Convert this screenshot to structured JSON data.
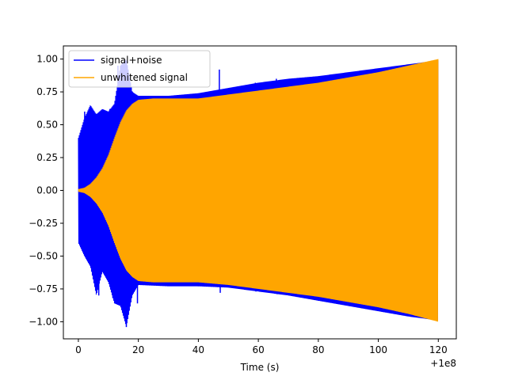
{
  "chart_data": {
    "type": "line",
    "title": "",
    "xlabel": "Time (s)",
    "ylabel": "",
    "x_offset_label": "+1e8",
    "xlim": [
      -5,
      126
    ],
    "ylim": [
      -1.13,
      1.1
    ],
    "x_ticks": [
      0,
      20,
      40,
      60,
      80,
      100,
      120
    ],
    "x_tick_labels": [
      "0",
      "20",
      "40",
      "60",
      "80",
      "100",
      "120"
    ],
    "y_ticks": [
      -1.0,
      -0.75,
      -0.5,
      -0.25,
      0.0,
      0.25,
      0.5,
      0.75,
      1.0
    ],
    "y_tick_labels": [
      "−1.00",
      "−0.75",
      "−0.50",
      "−0.25",
      "0.00",
      "0.25",
      "0.50",
      "0.75",
      "1.00"
    ],
    "grid": false,
    "legend": {
      "position": "top-left"
    },
    "series": [
      {
        "name": "signal+noise",
        "color": "#0000ff",
        "envelope": {
          "x": [
            0,
            2,
            4,
            6,
            8,
            10,
            12,
            14,
            16,
            18,
            20,
            30,
            40,
            50,
            60,
            70,
            80,
            90,
            100,
            110,
            120
          ],
          "upper": [
            0.4,
            0.55,
            0.65,
            0.58,
            0.62,
            0.6,
            0.66,
            0.95,
            1.0,
            0.75,
            0.72,
            0.72,
            0.74,
            0.78,
            0.82,
            0.85,
            0.87,
            0.9,
            0.93,
            0.96,
            0.99
          ],
          "lower": [
            -0.4,
            -0.5,
            -0.58,
            -0.8,
            -0.62,
            -0.7,
            -0.86,
            -0.88,
            -1.04,
            -0.8,
            -0.72,
            -0.73,
            -0.73,
            -0.74,
            -0.77,
            -0.8,
            -0.84,
            -0.88,
            -0.92,
            -0.96,
            -0.99
          ]
        },
        "spikes": [
          {
            "x": 1.0,
            "y": 0.4
          },
          {
            "x": 1.5,
            "y": -0.42
          },
          {
            "x": 2.1,
            "y": 0.6
          },
          {
            "x": 3.0,
            "y": -0.48
          },
          {
            "x": 4.5,
            "y": 0.62
          },
          {
            "x": 5.2,
            "y": -0.52
          },
          {
            "x": 6.8,
            "y": -0.8
          },
          {
            "x": 7.5,
            "y": 0.58
          },
          {
            "x": 9.0,
            "y": -0.6
          },
          {
            "x": 10.5,
            "y": 0.62
          },
          {
            "x": 11.5,
            "y": -0.82
          },
          {
            "x": 12.5,
            "y": 0.66
          },
          {
            "x": 13.2,
            "y": 0.95
          },
          {
            "x": 14.0,
            "y": -0.86
          },
          {
            "x": 15.5,
            "y": 0.96
          },
          {
            "x": 16.0,
            "y": -1.04
          },
          {
            "x": 17.0,
            "y": 0.8
          },
          {
            "x": 18.0,
            "y": 0.75
          },
          {
            "x": 19.7,
            "y": -0.86
          },
          {
            "x": 40.0,
            "y": -0.73
          },
          {
            "x": 47.0,
            "y": 0.92
          },
          {
            "x": 47.3,
            "y": -0.78
          },
          {
            "x": 59.0,
            "y": 0.82
          },
          {
            "x": 59.2,
            "y": -0.77
          },
          {
            "x": 66.0,
            "y": 0.85
          },
          {
            "x": 66.3,
            "y": -0.79
          },
          {
            "x": 80.0,
            "y": -0.84
          }
        ]
      },
      {
        "name": "unwhitened signal",
        "color": "#ffa500",
        "envelope": {
          "x": [
            0,
            2,
            4,
            6,
            8,
            10,
            12,
            14,
            16,
            18,
            20,
            25,
            30,
            40,
            50,
            60,
            70,
            80,
            90,
            100,
            110,
            120
          ],
          "upper": [
            0.01,
            0.02,
            0.05,
            0.1,
            0.17,
            0.27,
            0.4,
            0.52,
            0.61,
            0.66,
            0.69,
            0.7,
            0.7,
            0.7,
            0.73,
            0.76,
            0.79,
            0.82,
            0.86,
            0.9,
            0.95,
            1.0
          ],
          "lower": [
            -0.01,
            -0.02,
            -0.05,
            -0.1,
            -0.17,
            -0.27,
            -0.4,
            -0.52,
            -0.61,
            -0.66,
            -0.69,
            -0.7,
            -0.7,
            -0.7,
            -0.72,
            -0.75,
            -0.78,
            -0.81,
            -0.85,
            -0.89,
            -0.94,
            -1.0
          ]
        }
      }
    ]
  }
}
